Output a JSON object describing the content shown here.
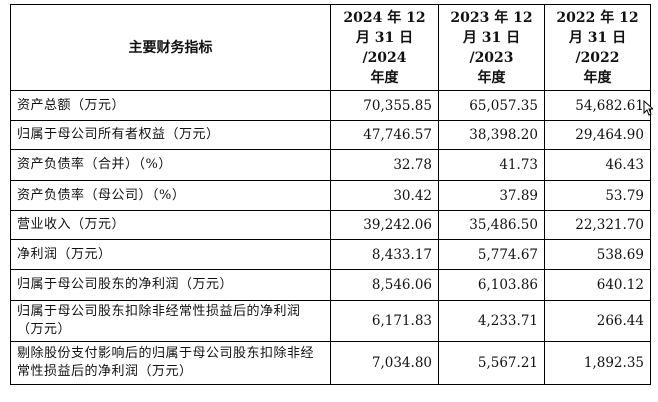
{
  "table": {
    "header": {
      "label": "主要财务指标",
      "years": [
        {
          "line1": "2024 年 12",
          "line2": "月 31 日",
          "line3": "/2024",
          "line4": "年度"
        },
        {
          "line1": "2023 年 12",
          "line2": "月 31 日",
          "line3": "/2023",
          "line4": "年度"
        },
        {
          "line1": "2022 年 12",
          "line2": "月 31 日",
          "line3": "/2022",
          "line4": "年度"
        }
      ]
    },
    "rows": [
      {
        "label": "资产总额（万元）",
        "values": [
          "70,355.85",
          "65,057.35",
          "54,682.61"
        ]
      },
      {
        "label": "归属于母公司所有者权益（万元）",
        "values": [
          "47,746.57",
          "38,398.20",
          "29,464.90"
        ]
      },
      {
        "label": "资产负债率（合并）（%）",
        "values": [
          "32.78",
          "41.73",
          "46.43"
        ]
      },
      {
        "label": "资产负债率（母公司）（%）",
        "values": [
          "30.42",
          "37.89",
          "53.79"
        ]
      },
      {
        "label": "营业收入（万元）",
        "values": [
          "39,242.06",
          "35,486.50",
          "22,321.70"
        ]
      },
      {
        "label": "净利润（万元）",
        "values": [
          "8,433.17",
          "5,774.67",
          "538.69"
        ]
      },
      {
        "label": "归属于母公司股东的净利润（万元）",
        "values": [
          "8,546.06",
          "6,103.86",
          "640.12"
        ]
      },
      {
        "label": "归属于母公司股东扣除非经常性损益后的净利润（万元）",
        "values": [
          "6,171.83",
          "4,233.71",
          "266.44"
        ]
      },
      {
        "label": "剔除股份支付影响后的归属于母公司股东扣除非经常性损益后的净利润（万元）",
        "values": [
          "7,034.80",
          "5,567.21",
          "1,892.35"
        ]
      }
    ]
  },
  "cursor": {
    "icon": "mouse-pointer-icon"
  }
}
